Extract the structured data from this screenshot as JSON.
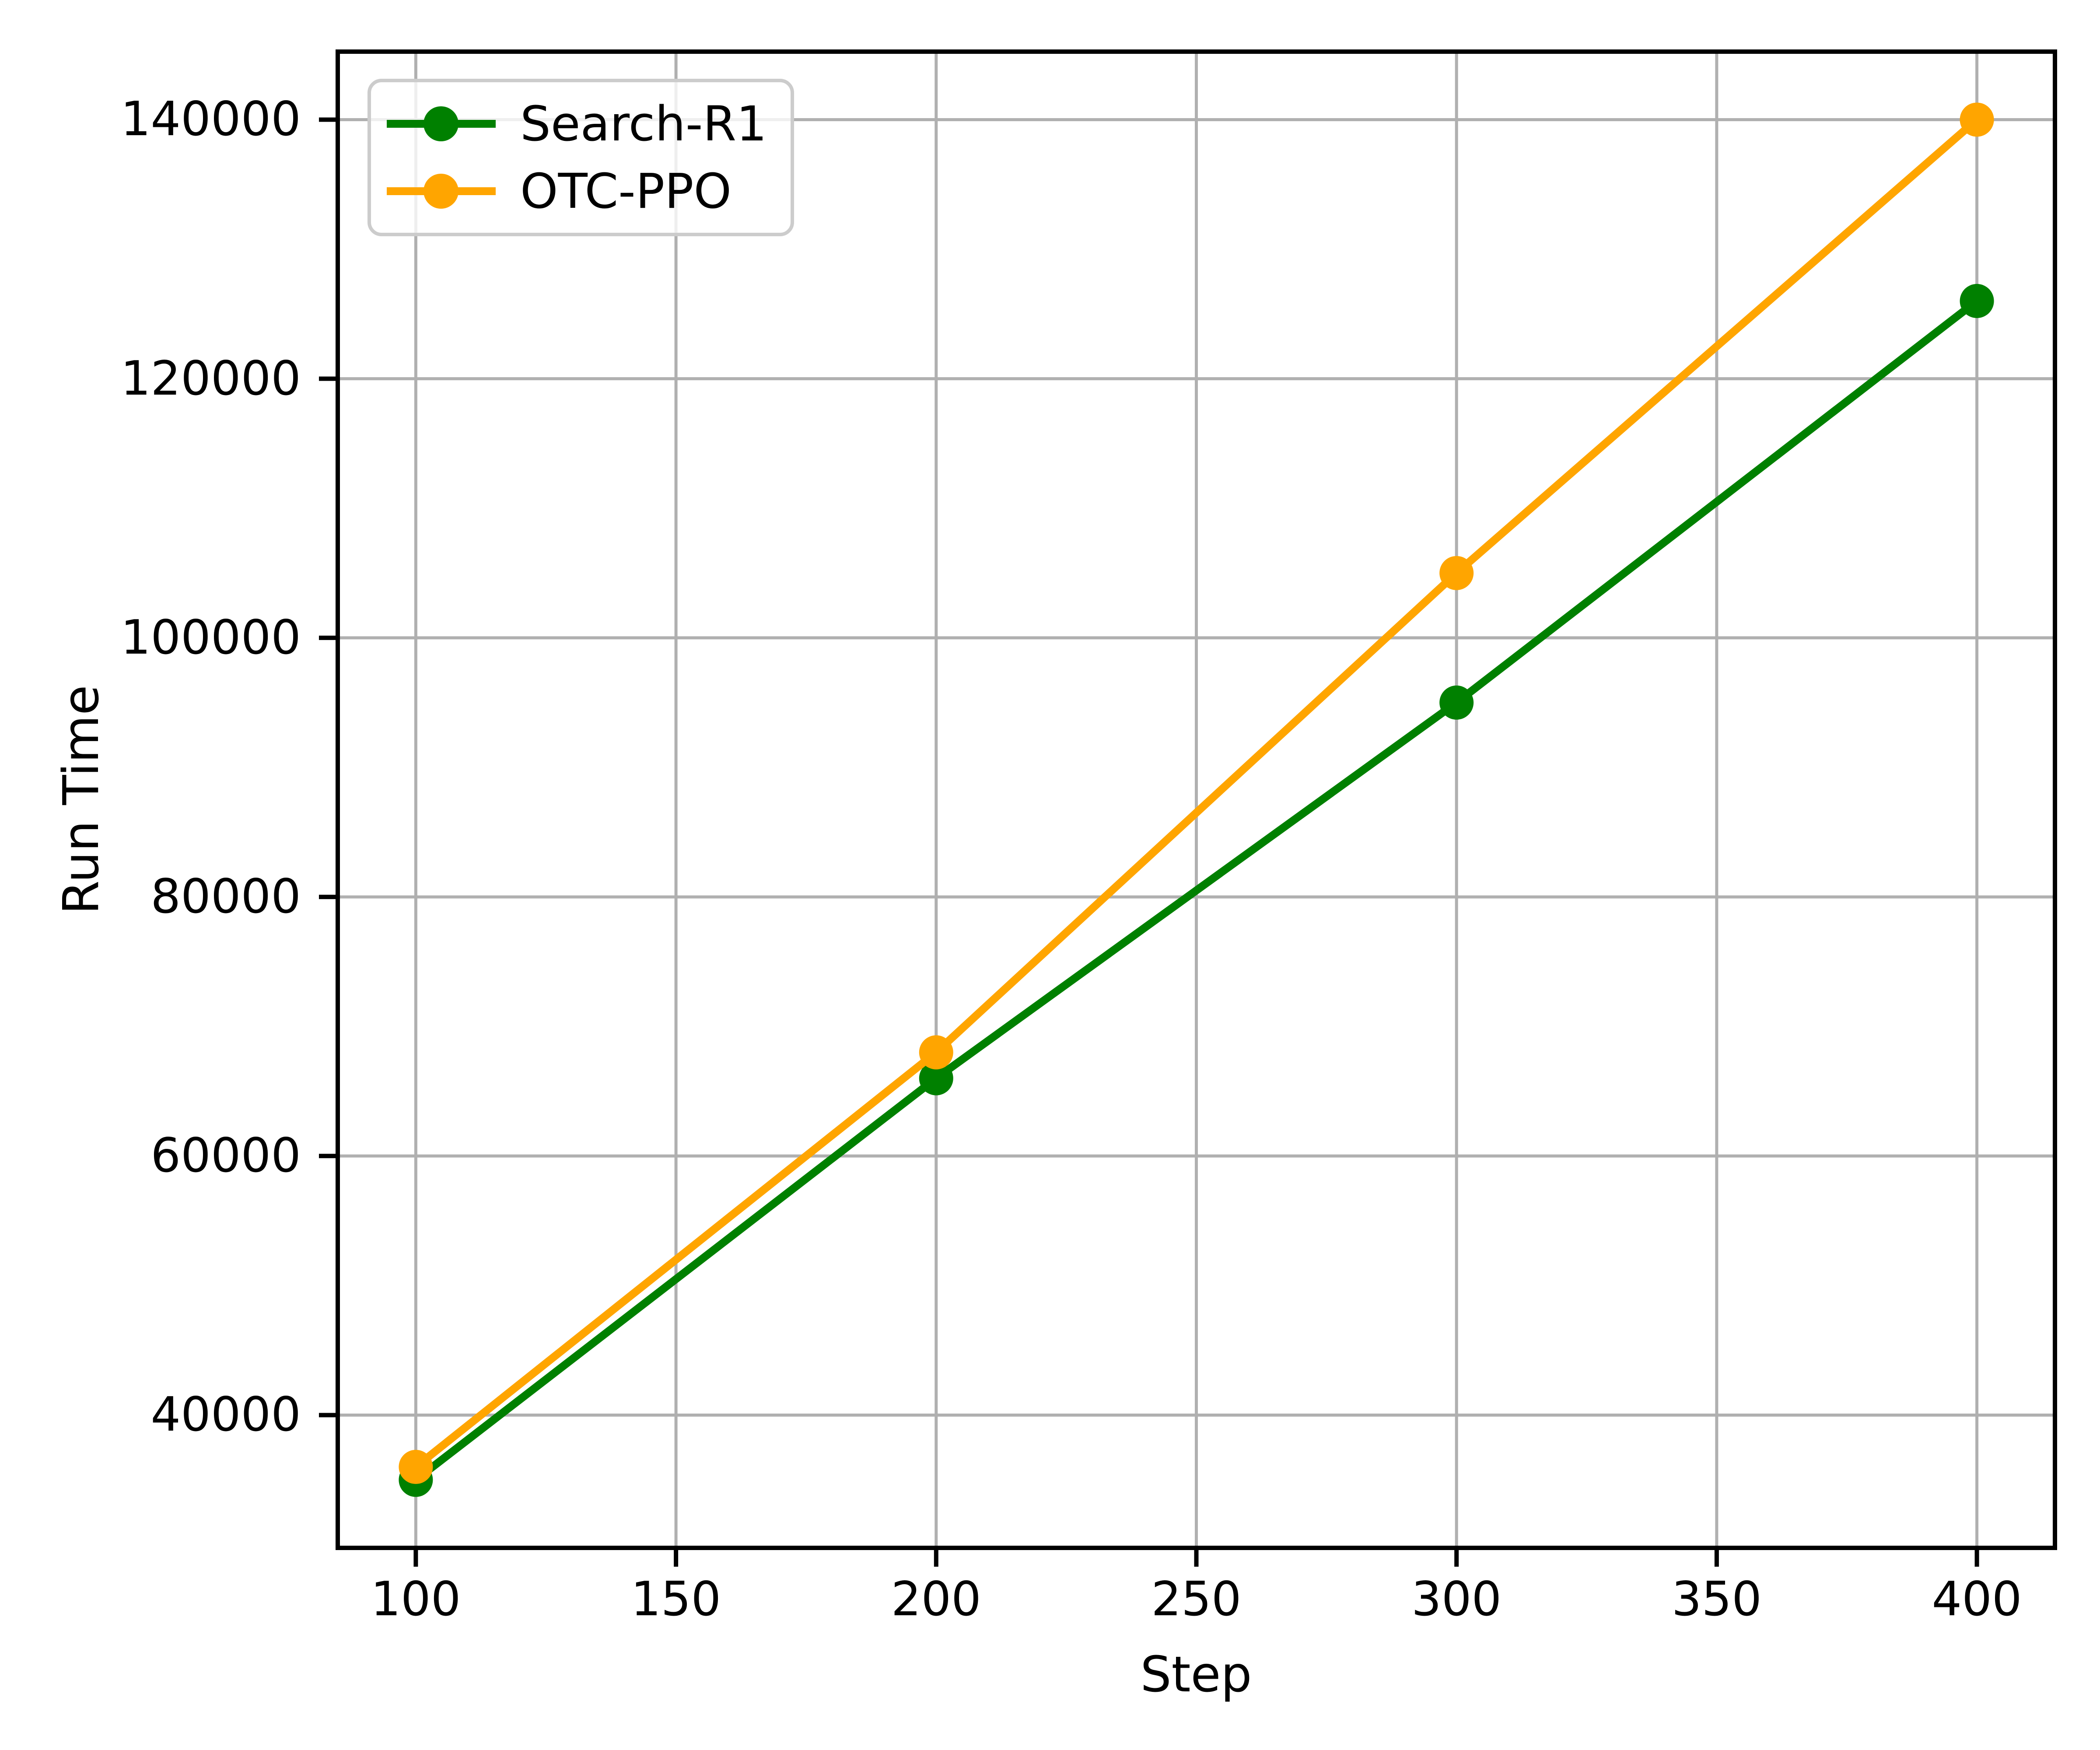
{
  "chart_data": {
    "type": "line",
    "x": [
      100,
      200,
      300,
      400
    ],
    "series": [
      {
        "name": "Search-R1",
        "color": "#008000",
        "values": [
          35000,
          66000,
          95000,
          126000
        ]
      },
      {
        "name": "OTC-PPO",
        "color": "#FFA500",
        "values": [
          36000,
          68000,
          105000,
          140000
        ]
      }
    ],
    "xlabel": "Step",
    "ylabel": "Run Time",
    "xticks": [
      100,
      150,
      200,
      250,
      300,
      350,
      400
    ],
    "yticks": [
      40000,
      60000,
      80000,
      100000,
      120000,
      140000
    ],
    "xlim": [
      85,
      415
    ],
    "ylim": [
      29750,
      145250
    ],
    "grid": true,
    "grid_color": "#b0b0b0",
    "axis_color": "#000000",
    "background_color": "#ffffff",
    "legend_position": "upper left",
    "legend_border_color": "#cccccc"
  }
}
